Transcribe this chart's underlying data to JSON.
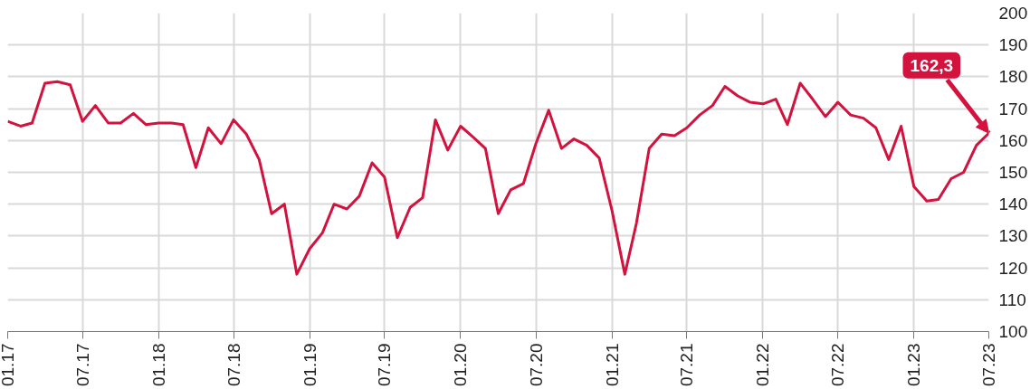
{
  "chart_data": {
    "type": "line",
    "x": [
      "2017-01",
      "2017-02",
      "2017-03",
      "2017-04",
      "2017-05",
      "2017-06",
      "2017-07",
      "2017-08",
      "2017-09",
      "2017-10",
      "2017-11",
      "2017-12",
      "2018-01",
      "2018-02",
      "2018-03",
      "2018-04",
      "2018-05",
      "2018-06",
      "2018-07",
      "2018-08",
      "2018-09",
      "2018-10",
      "2018-11",
      "2018-12",
      "2019-01",
      "2019-02",
      "2019-03",
      "2019-04",
      "2019-05",
      "2019-06",
      "2019-07",
      "2019-08",
      "2019-09",
      "2019-10",
      "2019-11",
      "2019-12",
      "2020-01",
      "2020-02",
      "2020-03",
      "2020-04",
      "2020-05",
      "2020-06",
      "2020-07",
      "2020-08",
      "2020-09",
      "2020-10",
      "2020-11",
      "2020-12",
      "2021-01",
      "2021-02",
      "2021-03",
      "2021-04",
      "2021-05",
      "2021-06",
      "2021-07",
      "2021-08",
      "2021-09",
      "2021-10",
      "2021-11",
      "2021-12",
      "2022-01",
      "2022-02",
      "2022-03",
      "2022-04",
      "2022-05",
      "2022-06",
      "2022-07",
      "2022-08",
      "2022-09",
      "2022-10",
      "2022-11",
      "2022-12",
      "2023-01",
      "2023-02",
      "2023-03",
      "2023-04",
      "2023-05",
      "2023-06",
      "2023-07"
    ],
    "series": [
      {
        "color": "#d3123e",
        "values": [
          166,
          164.5,
          165.5,
          178,
          178.5,
          177.5,
          166,
          171,
          165.5,
          165.5,
          168.5,
          165,
          165.5,
          165.5,
          165,
          151.5,
          164,
          159,
          166.5,
          162,
          154,
          137,
          140,
          118,
          126,
          131,
          140,
          138.5,
          142.5,
          153,
          148.5,
          129.5,
          139,
          142,
          166.5,
          157,
          164.5,
          161,
          157.5,
          137,
          144.5,
          146.5,
          159,
          169.5,
          157.5,
          160.5,
          158.5,
          154.5,
          138,
          118,
          134,
          157.5,
          162,
          161.5,
          164,
          168,
          171,
          177,
          174,
          172,
          171.5,
          173,
          165,
          178,
          173,
          167.5,
          172,
          168,
          167,
          164,
          154,
          164.5,
          145.5,
          141,
          141.5,
          148,
          150,
          158.5,
          162.3
        ]
      }
    ],
    "xlim": [
      "2017-01",
      "2023-07"
    ],
    "xticks": [
      {
        "value": "2017-01",
        "label": "01.17"
      },
      {
        "value": "2017-07",
        "label": "07.17"
      },
      {
        "value": "2018-01",
        "label": "01.18"
      },
      {
        "value": "2018-07",
        "label": "07.18"
      },
      {
        "value": "2019-01",
        "label": "01.19"
      },
      {
        "value": "2019-07",
        "label": "07.19"
      },
      {
        "value": "2020-01",
        "label": "01.20"
      },
      {
        "value": "2020-07",
        "label": "07.20"
      },
      {
        "value": "2021-01",
        "label": "01.21"
      },
      {
        "value": "2021-07",
        "label": "07.21"
      },
      {
        "value": "2022-01",
        "label": "01.22"
      },
      {
        "value": "2022-07",
        "label": "07.22"
      },
      {
        "value": "2023-01",
        "label": "01.23"
      },
      {
        "value": "2023-07",
        "label": "07.23"
      }
    ],
    "ylim": [
      100,
      200
    ],
    "yticks": [
      100,
      110,
      120,
      130,
      140,
      150,
      160,
      170,
      180,
      190,
      200
    ],
    "grid": true,
    "annotations": [
      {
        "text": "162,3",
        "x": "2023-07",
        "y": 162.3
      }
    ]
  }
}
